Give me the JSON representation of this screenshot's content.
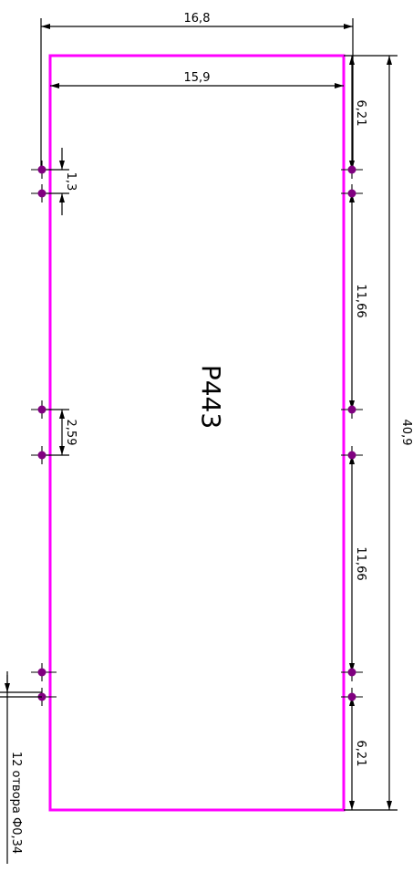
{
  "drawing": {
    "part_label": "P443",
    "dims": {
      "overall_width": "16,8",
      "inner_width": "15,9",
      "height": "40,9",
      "top_offset": "6,21",
      "pitch_upper": "11,66",
      "pitch_lower": "11,66",
      "bottom_offset": "6,21",
      "hole_spacing_top": "1,3",
      "hole_spacing_mid": "2,59"
    },
    "note": "12 отвора Ф0,34",
    "colors": {
      "outline": "#ff00ff",
      "hole": "#800080",
      "line": "#000000"
    }
  }
}
